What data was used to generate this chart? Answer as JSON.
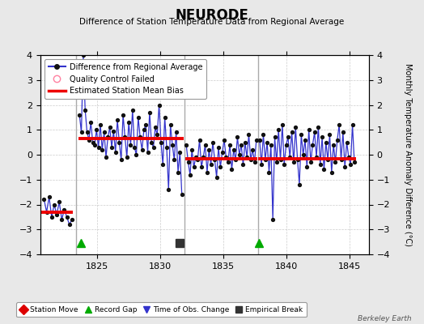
{
  "title": "NEURODE",
  "subtitle": "Difference of Station Temperature Data from Regional Average",
  "ylabel": "Monthly Temperature Anomaly Difference (°C)",
  "xlim": [
    1820.5,
    1846.5
  ],
  "ylim": [
    -4,
    4
  ],
  "xticks": [
    1825,
    1830,
    1835,
    1840,
    1845
  ],
  "yticks": [
    -4,
    -3,
    -2,
    -1,
    0,
    1,
    2,
    3,
    4
  ],
  "background_color": "#e8e8e8",
  "plot_bg_color": "#ffffff",
  "grid_color": "#c0c0c0",
  "watermark": "Berkeley Earth",
  "segments": [
    {
      "x_start": 1820.5,
      "x_end": 1823.1,
      "bias": -2.3,
      "data": [
        [
          1820.8,
          -1.8
        ],
        [
          1821.0,
          -2.3
        ],
        [
          1821.2,
          -1.7
        ],
        [
          1821.4,
          -2.5
        ],
        [
          1821.6,
          -2.0
        ],
        [
          1821.8,
          -2.4
        ],
        [
          1822.0,
          -1.9
        ],
        [
          1822.2,
          -2.6
        ],
        [
          1822.4,
          -2.2
        ],
        [
          1822.6,
          -2.5
        ],
        [
          1822.8,
          -2.8
        ],
        [
          1823.0,
          -2.6
        ]
      ]
    },
    {
      "x_start": 1823.5,
      "x_end": 1831.85,
      "bias": 0.65,
      "data": [
        [
          1823.6,
          1.6
        ],
        [
          1823.75,
          0.9
        ],
        [
          1823.9,
          4.0
        ],
        [
          1824.05,
          1.8
        ],
        [
          1824.2,
          0.9
        ],
        [
          1824.35,
          0.6
        ],
        [
          1824.5,
          1.3
        ],
        [
          1824.65,
          0.5
        ],
        [
          1824.8,
          0.4
        ],
        [
          1824.95,
          1.0
        ],
        [
          1825.1,
          0.3
        ],
        [
          1825.25,
          1.2
        ],
        [
          1825.4,
          0.2
        ],
        [
          1825.55,
          0.9
        ],
        [
          1825.7,
          -0.1
        ],
        [
          1825.85,
          0.7
        ],
        [
          1826.0,
          1.1
        ],
        [
          1826.15,
          0.3
        ],
        [
          1826.3,
          0.95
        ],
        [
          1826.45,
          0.1
        ],
        [
          1826.6,
          1.4
        ],
        [
          1826.75,
          0.5
        ],
        [
          1826.9,
          -0.2
        ],
        [
          1827.05,
          1.6
        ],
        [
          1827.2,
          0.7
        ],
        [
          1827.35,
          -0.1
        ],
        [
          1827.5,
          1.3
        ],
        [
          1827.65,
          0.4
        ],
        [
          1827.8,
          1.8
        ],
        [
          1827.95,
          0.3
        ],
        [
          1828.1,
          -0.0
        ],
        [
          1828.25,
          1.5
        ],
        [
          1828.4,
          0.7
        ],
        [
          1828.55,
          0.2
        ],
        [
          1828.7,
          1.0
        ],
        [
          1828.85,
          1.2
        ],
        [
          1829.0,
          0.1
        ],
        [
          1829.15,
          1.7
        ],
        [
          1829.3,
          0.5
        ],
        [
          1829.45,
          0.3
        ],
        [
          1829.6,
          1.1
        ],
        [
          1829.75,
          0.8
        ],
        [
          1829.9,
          2.0
        ],
        [
          1830.05,
          0.5
        ],
        [
          1830.2,
          -0.4
        ],
        [
          1830.35,
          1.5
        ],
        [
          1830.5,
          0.3
        ],
        [
          1830.65,
          -1.4
        ],
        [
          1830.8,
          1.2
        ],
        [
          1830.95,
          0.4
        ],
        [
          1831.1,
          -0.2
        ],
        [
          1831.25,
          0.9
        ],
        [
          1831.4,
          -0.7
        ],
        [
          1831.55,
          0.1
        ],
        [
          1831.7,
          -1.6
        ]
      ]
    },
    {
      "x_start": 1832.0,
      "x_end": 1837.7,
      "bias": -0.15,
      "data": [
        [
          1832.05,
          0.4
        ],
        [
          1832.2,
          -0.3
        ],
        [
          1832.35,
          -0.8
        ],
        [
          1832.5,
          0.2
        ],
        [
          1832.65,
          -0.5
        ],
        [
          1832.8,
          -0.1
        ],
        [
          1832.95,
          -0.2
        ],
        [
          1833.1,
          0.6
        ],
        [
          1833.25,
          -0.5
        ],
        [
          1833.4,
          -0.1
        ],
        [
          1833.55,
          0.4
        ],
        [
          1833.7,
          -0.7
        ],
        [
          1833.85,
          0.2
        ],
        [
          1834.0,
          -0.4
        ],
        [
          1834.15,
          0.5
        ],
        [
          1834.3,
          -0.2
        ],
        [
          1834.45,
          -0.9
        ],
        [
          1834.6,
          0.3
        ],
        [
          1834.75,
          -0.5
        ],
        [
          1834.9,
          0.1
        ],
        [
          1835.05,
          0.6
        ],
        [
          1835.2,
          -0.1
        ],
        [
          1835.35,
          -0.3
        ],
        [
          1835.5,
          0.4
        ],
        [
          1835.65,
          -0.6
        ],
        [
          1835.8,
          0.2
        ],
        [
          1835.95,
          -0.2
        ],
        [
          1836.1,
          0.7
        ],
        [
          1836.25,
          -0.0
        ],
        [
          1836.4,
          0.4
        ],
        [
          1836.55,
          -0.4
        ],
        [
          1836.7,
          0.5
        ],
        [
          1836.85,
          -0.1
        ],
        [
          1837.0,
          0.8
        ],
        [
          1837.15,
          -0.2
        ],
        [
          1837.3,
          0.2
        ],
        [
          1837.45,
          -0.3
        ],
        [
          1837.6,
          0.6
        ]
      ]
    },
    {
      "x_start": 1837.75,
      "x_end": 1845.5,
      "bias": -0.15,
      "data": [
        [
          1837.85,
          0.6
        ],
        [
          1838.0,
          -0.4
        ],
        [
          1838.15,
          0.8
        ],
        [
          1838.3,
          -0.2
        ],
        [
          1838.45,
          0.5
        ],
        [
          1838.6,
          -0.7
        ],
        [
          1838.75,
          0.4
        ],
        [
          1838.9,
          -2.6
        ],
        [
          1839.05,
          0.7
        ],
        [
          1839.2,
          -0.3
        ],
        [
          1839.35,
          1.0
        ],
        [
          1839.5,
          -0.2
        ],
        [
          1839.65,
          1.2
        ],
        [
          1839.8,
          -0.4
        ],
        [
          1839.95,
          0.4
        ],
        [
          1840.1,
          0.7
        ],
        [
          1840.25,
          -0.1
        ],
        [
          1840.4,
          0.9
        ],
        [
          1840.55,
          -0.3
        ],
        [
          1840.7,
          1.1
        ],
        [
          1840.85,
          -0.2
        ],
        [
          1841.0,
          -1.2
        ],
        [
          1841.15,
          0.8
        ],
        [
          1841.3,
          -0.0
        ],
        [
          1841.45,
          0.6
        ],
        [
          1841.6,
          -0.5
        ],
        [
          1841.75,
          1.0
        ],
        [
          1841.9,
          -0.3
        ],
        [
          1842.05,
          0.4
        ],
        [
          1842.2,
          0.9
        ],
        [
          1842.35,
          -0.1
        ],
        [
          1842.5,
          1.1
        ],
        [
          1842.65,
          -0.4
        ],
        [
          1842.8,
          0.7
        ],
        [
          1842.95,
          -0.6
        ],
        [
          1843.1,
          0.5
        ],
        [
          1843.25,
          -0.2
        ],
        [
          1843.4,
          0.8
        ],
        [
          1843.55,
          -0.7
        ],
        [
          1843.7,
          0.4
        ],
        [
          1843.85,
          -0.3
        ],
        [
          1844.0,
          0.6
        ],
        [
          1844.15,
          1.2
        ],
        [
          1844.3,
          -0.2
        ],
        [
          1844.45,
          0.9
        ],
        [
          1844.6,
          -0.5
        ],
        [
          1844.75,
          0.5
        ],
        [
          1844.9,
          -0.1
        ],
        [
          1845.05,
          -0.4
        ],
        [
          1845.2,
          1.2
        ],
        [
          1845.35,
          -0.3
        ]
      ]
    }
  ],
  "vertical_lines": [
    1823.35,
    1831.9,
    1837.72
  ],
  "vertical_line_color": "#aaaaaa",
  "markers_below": [
    {
      "x": 1823.7,
      "type": "triangle_up",
      "color": "#00aa00"
    },
    {
      "x": 1831.5,
      "type": "square",
      "color": "#333333"
    },
    {
      "x": 1837.8,
      "type": "triangle_up",
      "color": "#00aa00"
    }
  ],
  "bottom_legend_items": [
    {
      "label": "Station Move",
      "color": "#dd0000",
      "marker": "D"
    },
    {
      "label": "Record Gap",
      "color": "#00aa00",
      "marker": "^"
    },
    {
      "label": "Time of Obs. Change",
      "color": "#3333cc",
      "marker": "v"
    },
    {
      "label": "Empirical Break",
      "color": "#333333",
      "marker": "s"
    }
  ]
}
